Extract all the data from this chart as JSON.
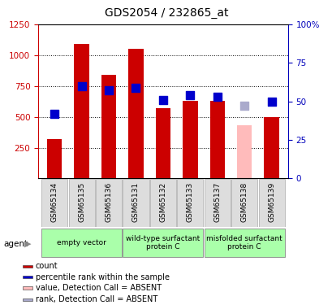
{
  "title": "GDS2054 / 232865_at",
  "samples": [
    "GSM65134",
    "GSM65135",
    "GSM65136",
    "GSM65131",
    "GSM65132",
    "GSM65133",
    "GSM65137",
    "GSM65138",
    "GSM65139"
  ],
  "bar_values": [
    320,
    1090,
    840,
    1050,
    570,
    630,
    630,
    430,
    500
  ],
  "bar_colors": [
    "#cc0000",
    "#cc0000",
    "#cc0000",
    "#cc0000",
    "#cc0000",
    "#cc0000",
    "#cc0000",
    "#ffbbbb",
    "#cc0000"
  ],
  "rank_pct": [
    42,
    60,
    57,
    59,
    51,
    54,
    53,
    47,
    50
  ],
  "rank_colors": [
    "#0000cc",
    "#0000cc",
    "#0000cc",
    "#0000cc",
    "#0000cc",
    "#0000cc",
    "#0000cc",
    "#aaaacc",
    "#0000cc"
  ],
  "ylim_left": [
    0,
    1250
  ],
  "ylim_right": [
    0,
    100
  ],
  "yticks_left": [
    250,
    500,
    750,
    1000,
    1250
  ],
  "yticks_right": [
    0,
    25,
    50,
    75,
    100
  ],
  "ytick_labels_right": [
    "0",
    "25",
    "50",
    "75",
    "100%"
  ],
  "group_specs": [
    {
      "label": "empty vector",
      "indices": [
        0,
        1,
        2
      ]
    },
    {
      "label": "wild-type surfactant\nprotein C",
      "indices": [
        3,
        4,
        5
      ]
    },
    {
      "label": "misfolded surfactant\nprotein C",
      "indices": [
        6,
        7,
        8
      ]
    }
  ],
  "group_color": "#aaffaa",
  "group_edge_color": "#888888",
  "sample_box_color": "#dddddd",
  "sample_box_edge": "#aaaaaa",
  "agent_label": "agent",
  "legend_items": [
    {
      "label": "count",
      "color": "#cc0000"
    },
    {
      "label": "percentile rank within the sample",
      "color": "#0000cc"
    },
    {
      "label": "value, Detection Call = ABSENT",
      "color": "#ffbbbb"
    },
    {
      "label": "rank, Detection Call = ABSENT",
      "color": "#aaaacc"
    }
  ],
  "left_axis_color": "#cc0000",
  "right_axis_color": "#0000bb",
  "bar_width": 0.55,
  "rank_marker_size": 45,
  "title_fontsize": 10,
  "axis_fontsize": 7.5,
  "label_fontsize": 6.5,
  "legend_fontsize": 7
}
